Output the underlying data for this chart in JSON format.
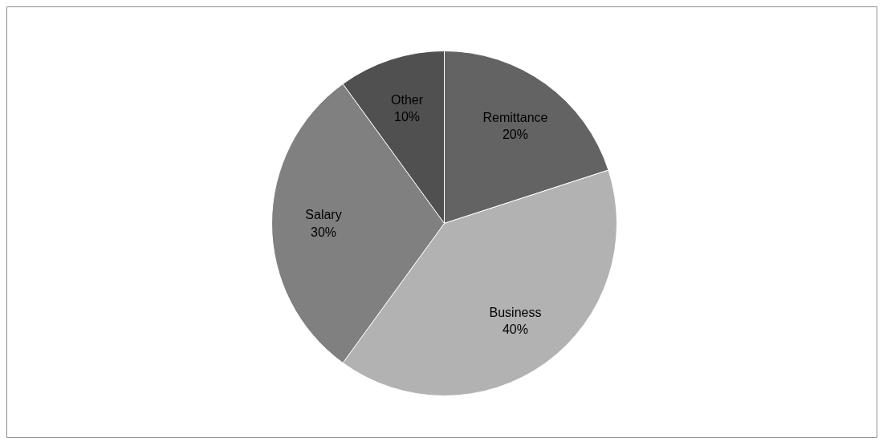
{
  "chart_data": {
    "type": "pie",
    "categories": [
      "Remittance",
      "Business",
      "Salary",
      "Other"
    ],
    "values": [
      20,
      40,
      30,
      10
    ],
    "value_labels": [
      "20%",
      "40%",
      "30%",
      "10%"
    ],
    "colors": [
      "#636363",
      "#b2b2b2",
      "#808080",
      "#505050"
    ]
  }
}
